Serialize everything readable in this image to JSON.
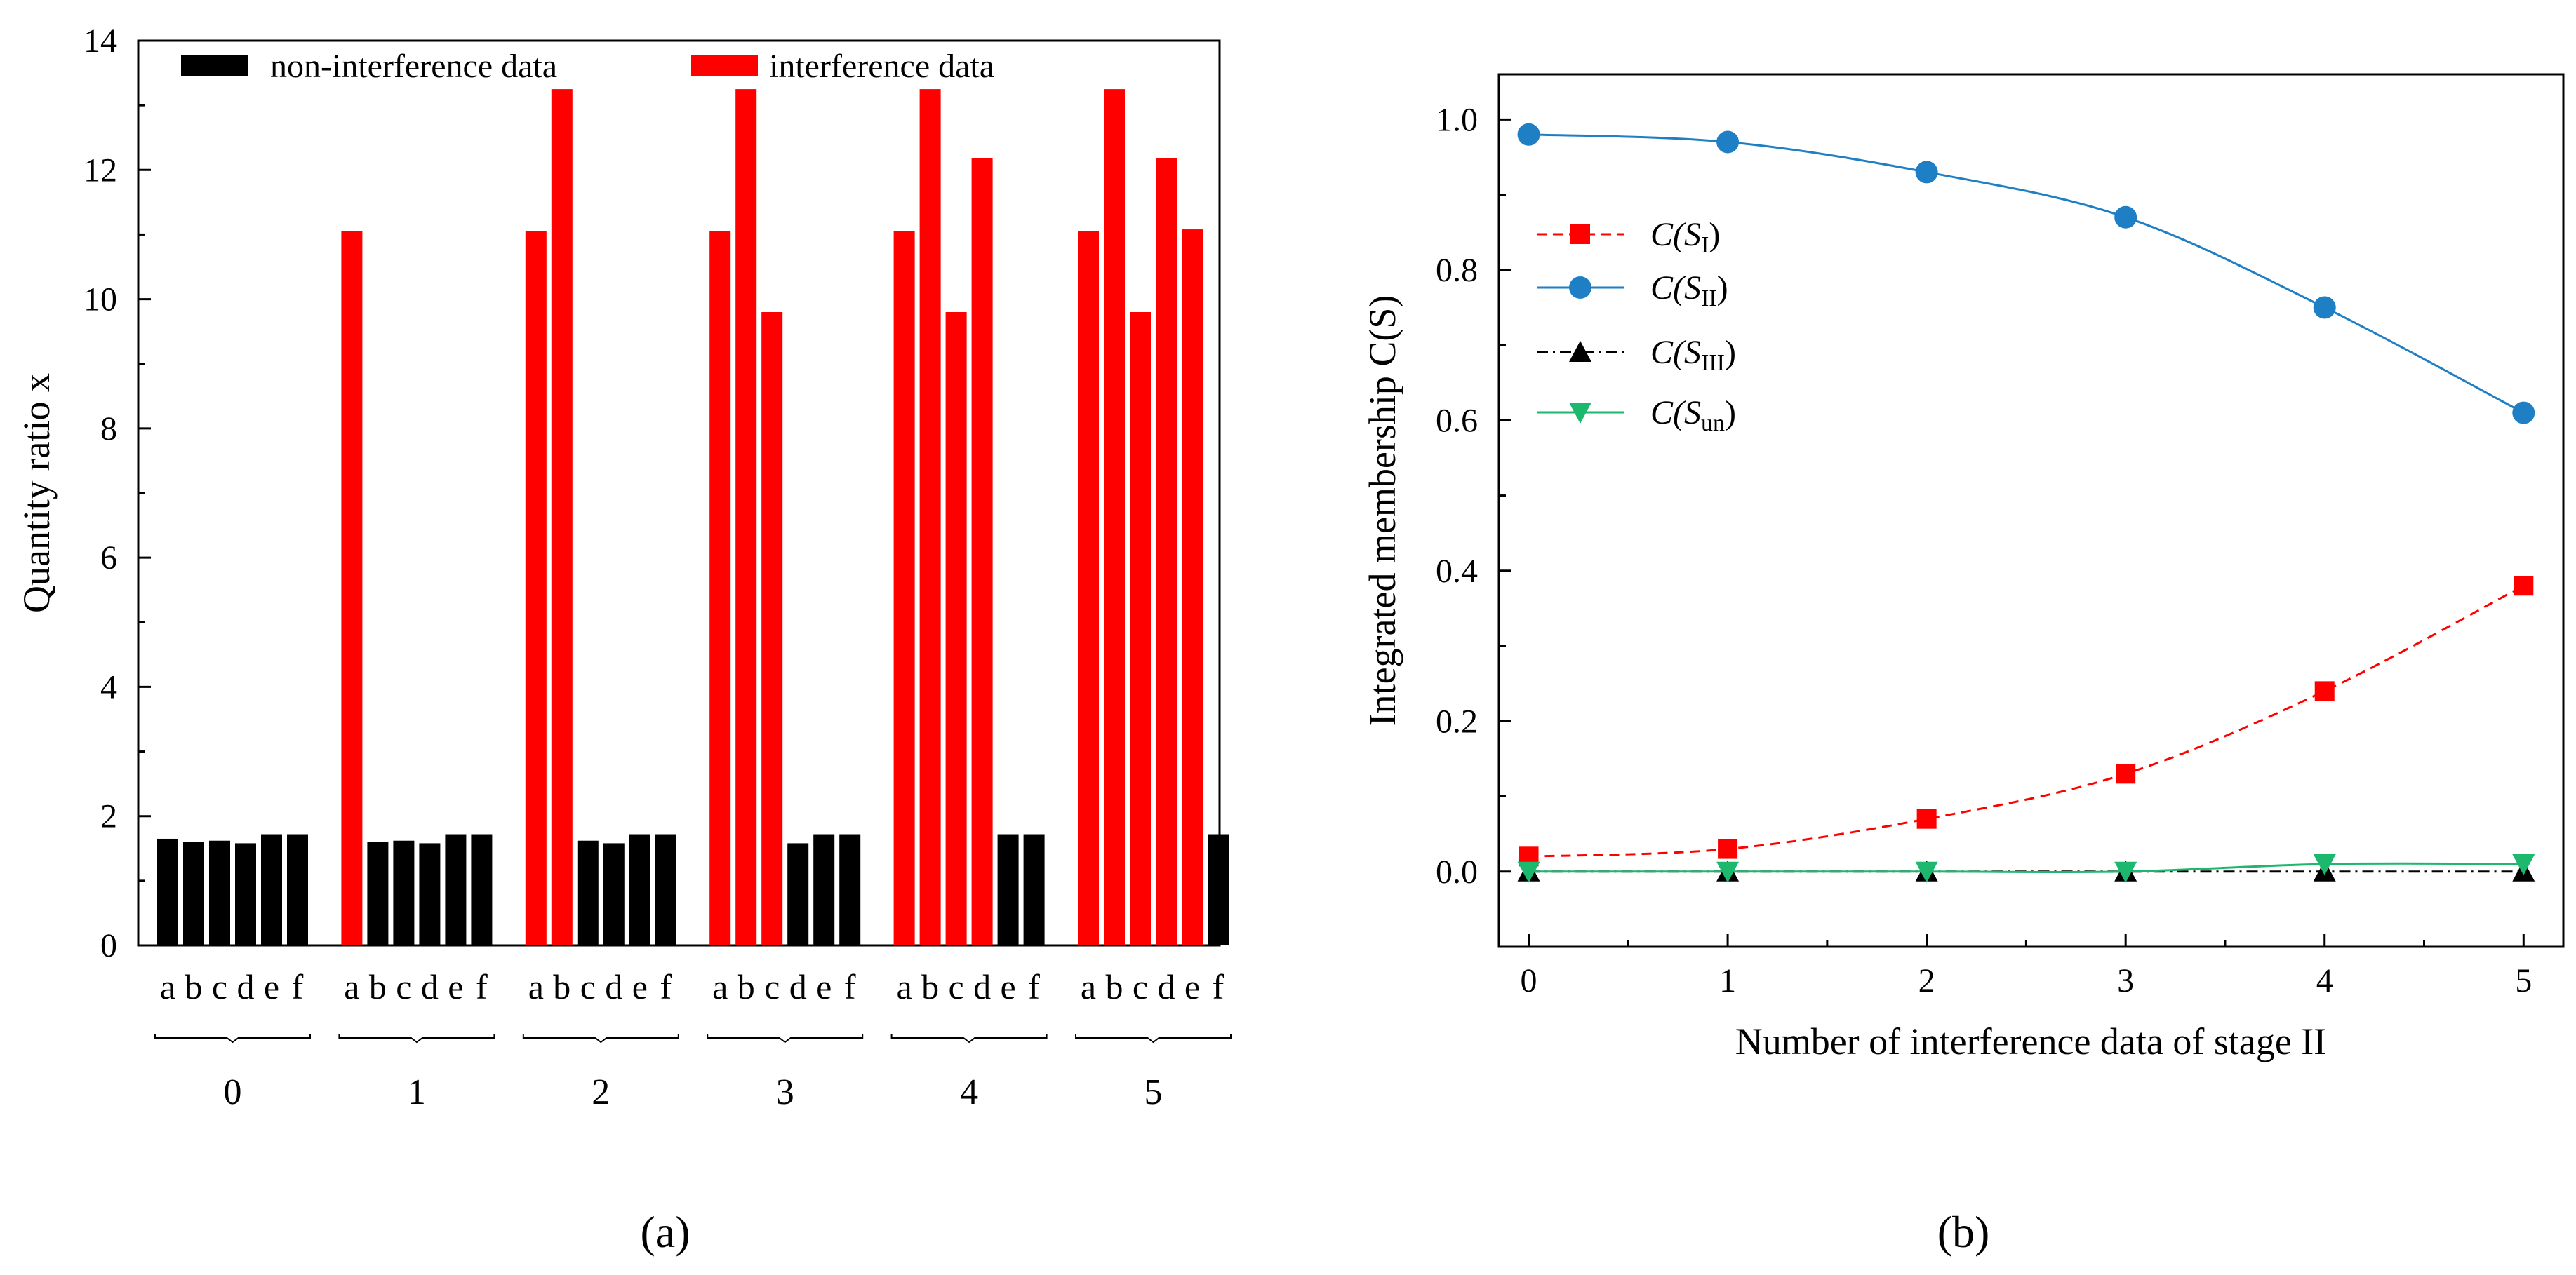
{
  "chart_data": [
    {
      "type": "bar",
      "panel_label": "(a)",
      "ylabel": "Quantity ratio x",
      "ylim": [
        0,
        14
      ],
      "yticks": [
        0,
        2,
        4,
        6,
        8,
        10,
        12,
        14
      ],
      "legend": {
        "position": "top",
        "entries": [
          {
            "name": "non-interference data",
            "color": "#000000"
          },
          {
            "name": "interference data",
            "color": "#ff0000"
          }
        ]
      },
      "subcategories": [
        "a",
        "b",
        "c",
        "d",
        "e",
        "f"
      ],
      "groups": [
        {
          "label": "0",
          "values": [
            1.65,
            1.6,
            1.62,
            1.58,
            1.72,
            1.72
          ],
          "interference": [
            false,
            false,
            false,
            false,
            false,
            false
          ]
        },
        {
          "label": "1",
          "values": [
            11.05,
            1.6,
            1.62,
            1.58,
            1.72,
            1.72
          ],
          "interference": [
            true,
            false,
            false,
            false,
            false,
            false
          ]
        },
        {
          "label": "2",
          "values": [
            11.05,
            13.25,
            1.62,
            1.58,
            1.72,
            1.72
          ],
          "interference": [
            true,
            true,
            false,
            false,
            false,
            false
          ]
        },
        {
          "label": "3",
          "values": [
            11.05,
            13.25,
            9.8,
            1.58,
            1.72,
            1.72
          ],
          "interference": [
            true,
            true,
            true,
            false,
            false,
            false
          ]
        },
        {
          "label": "4",
          "values": [
            11.05,
            13.25,
            9.8,
            12.18,
            1.72,
            1.72
          ],
          "interference": [
            true,
            true,
            true,
            true,
            false,
            false
          ]
        },
        {
          "label": "5",
          "values": [
            11.05,
            13.25,
            9.8,
            12.18,
            11.08,
            1.72
          ],
          "interference": [
            true,
            true,
            true,
            true,
            true,
            false
          ]
        }
      ]
    },
    {
      "type": "line",
      "panel_label": "(b)",
      "xlabel": "Number of interference data of stage II",
      "ylabel": "Integrated membership C(S)",
      "xlim": [
        -0.15,
        5.2
      ],
      "ylim": [
        -0.1,
        1.06
      ],
      "xticks": [
        0,
        1,
        2,
        3,
        4,
        5
      ],
      "yticks": [
        0.0,
        0.2,
        0.4,
        0.6,
        0.8,
        1.0
      ],
      "ytick_labels": [
        "0.0",
        "0.2",
        "0.4",
        "0.6",
        "0.8",
        "1.0"
      ],
      "x": [
        0,
        1,
        2,
        3,
        4,
        5
      ],
      "series": [
        {
          "name": "C(SI)",
          "label_main": "C(S",
          "label_sub": "I",
          "label_tail": ")",
          "color": "#ff0000",
          "marker": "square",
          "dash": "14,9",
          "values": [
            0.02,
            0.03,
            0.07,
            0.13,
            0.24,
            0.38
          ]
        },
        {
          "name": "C(SII)",
          "label_main": "C(S",
          "label_sub": "II",
          "label_tail": ")",
          "color": "#1f7fc4",
          "marker": "circle",
          "dash": "",
          "values": [
            0.98,
            0.97,
            0.93,
            0.87,
            0.75,
            0.61
          ]
        },
        {
          "name": "C(SIII)",
          "label_main": "C(S",
          "label_sub": "III",
          "label_tail": ")",
          "color": "#000000",
          "marker": "triangle-up",
          "dash": "16,7,3,7",
          "values": [
            0.0,
            0.0,
            0.0,
            0.0,
            0.0,
            0.0
          ]
        },
        {
          "name": "C(Sun)",
          "label_main": "C(S",
          "label_sub": "un",
          "label_tail": ")",
          "color": "#1cb86e",
          "marker": "triangle-down",
          "dash": "",
          "values": [
            0.0,
            0.0,
            0.0,
            0.0,
            0.01,
            0.01
          ]
        }
      ]
    }
  ]
}
